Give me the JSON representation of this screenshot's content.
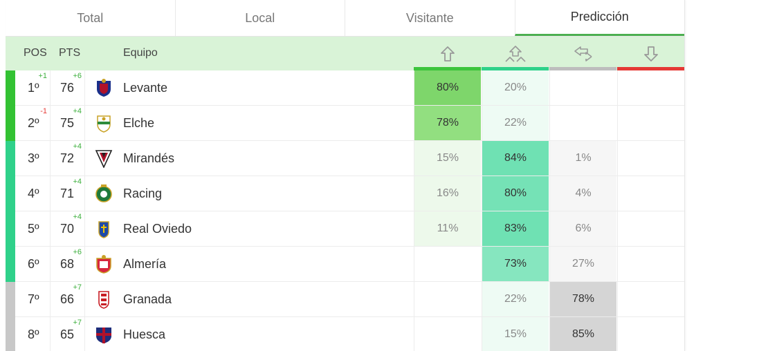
{
  "tabs": [
    {
      "label": "Total",
      "active": false
    },
    {
      "label": "Local",
      "active": false
    },
    {
      "label": "Visitante",
      "active": false
    },
    {
      "label": "Predicción",
      "active": true
    }
  ],
  "header": {
    "pos": "POS",
    "pts": "PTS",
    "team": "Equipo"
  },
  "columns": [
    {
      "icon": "promotion-arrow-icon",
      "color": "#3cc43c"
    },
    {
      "icon": "playoff-arrows-icon",
      "color": "#2fd18a"
    },
    {
      "icon": "stay-arrows-icon",
      "color": "#bdbdbd"
    },
    {
      "icon": "relegation-arrow-icon",
      "color": "#e53935"
    }
  ],
  "colors": {
    "accent": "#4caf50",
    "header_bg": "#d9f3d7",
    "stripe_promotion": "#33c233",
    "stripe_playoff": "#2fd18a",
    "stripe_safe": "#c8c8c8"
  },
  "rows": [
    {
      "pos": "1º",
      "pos_delta": "+1",
      "pos_delta_dir": "up",
      "pts": "76",
      "pts_delta": "+6",
      "team": "Levante",
      "crest": "levante-crest-icon",
      "zone": "promotion",
      "cells": [
        "80%",
        "20%",
        "",
        ""
      ]
    },
    {
      "pos": "2º",
      "pos_delta": "-1",
      "pos_delta_dir": "down",
      "pts": "75",
      "pts_delta": "+4",
      "team": "Elche",
      "crest": "elche-crest-icon",
      "zone": "promotion",
      "cells": [
        "78%",
        "22%",
        "",
        ""
      ]
    },
    {
      "pos": "3º",
      "pos_delta": "",
      "pos_delta_dir": "",
      "pts": "72",
      "pts_delta": "+4",
      "team": "Mirandés",
      "crest": "mirandes-crest-icon",
      "zone": "playoff",
      "cells": [
        "15%",
        "84%",
        "1%",
        ""
      ]
    },
    {
      "pos": "4º",
      "pos_delta": "",
      "pos_delta_dir": "",
      "pts": "71",
      "pts_delta": "+4",
      "team": "Racing",
      "crest": "racing-crest-icon",
      "zone": "playoff",
      "cells": [
        "16%",
        "80%",
        "4%",
        ""
      ]
    },
    {
      "pos": "5º",
      "pos_delta": "",
      "pos_delta_dir": "",
      "pts": "70",
      "pts_delta": "+4",
      "team": "Real Oviedo",
      "crest": "oviedo-crest-icon",
      "zone": "playoff",
      "cells": [
        "11%",
        "83%",
        "6%",
        ""
      ]
    },
    {
      "pos": "6º",
      "pos_delta": "",
      "pos_delta_dir": "",
      "pts": "68",
      "pts_delta": "+6",
      "team": "Almería",
      "crest": "almeria-crest-icon",
      "zone": "playoff",
      "cells": [
        "",
        "73%",
        "27%",
        ""
      ]
    },
    {
      "pos": "7º",
      "pos_delta": "",
      "pos_delta_dir": "",
      "pts": "66",
      "pts_delta": "+7",
      "team": "Granada",
      "crest": "granada-crest-icon",
      "zone": "safe",
      "cells": [
        "",
        "22%",
        "78%",
        ""
      ]
    },
    {
      "pos": "8º",
      "pos_delta": "",
      "pos_delta_dir": "",
      "pts": "65",
      "pts_delta": "+7",
      "team": "Huesca",
      "crest": "huesca-crest-icon",
      "zone": "safe",
      "cells": [
        "",
        "15%",
        "85%",
        ""
      ]
    }
  ]
}
